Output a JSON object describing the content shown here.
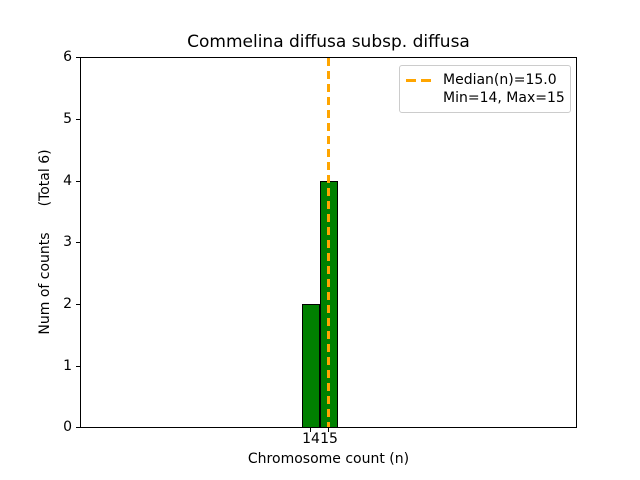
{
  "figure": {
    "title": "Commelina diffusa subsp. diffusa",
    "xlabel": "Chromosome count (n)",
    "ylabel": "Num of counts",
    "ylabel_suffix": "(Total 6)",
    "colors": {
      "bar_fill": "#008000",
      "bar_edge": "#000000",
      "median_line": "#FFA500",
      "axis": "#000000",
      "legend_border": "#cccccc",
      "background": "#ffffff"
    }
  },
  "legend": {
    "line1": "Median(n)=15.0",
    "line2": "Min=14, Max=15"
  },
  "chart_data": {
    "type": "bar",
    "title": "Commelina diffusa subsp. diffusa",
    "xlabel": "Chromosome count (n)",
    "ylabel": "Num of counts    (Total 6)",
    "categories": [
      14,
      15
    ],
    "values": [
      2,
      4
    ],
    "total_counts": 6,
    "median_n": 15.0,
    "min_n": 14,
    "max_n": 15,
    "ylim": [
      0,
      6
    ],
    "yticks": [
      0,
      1,
      2,
      3,
      4,
      5,
      6
    ],
    "xticks": [
      14,
      15
    ],
    "bar_color": "#008000",
    "bar_edge_color": "#000000",
    "median_line_color": "#FFA500",
    "median_line_style": "dashed",
    "legend_entries": [
      "Median(n)=15.0",
      "Min=14, Max=15"
    ],
    "legend_position": "upper right",
    "grid": false
  }
}
